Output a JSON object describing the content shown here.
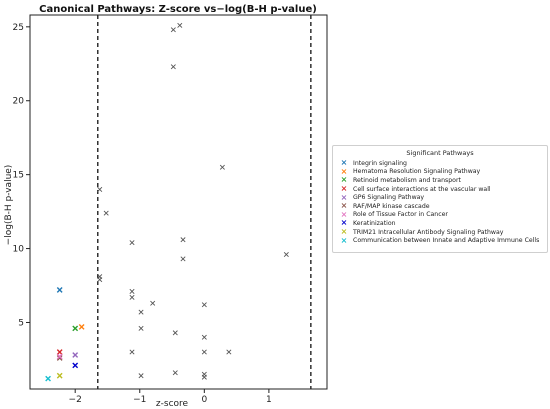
{
  "chart_data": {
    "type": "scatter",
    "title": "Canonical Pathways: Z-score vs−log(B-H p-value)",
    "xlabel": "z-score",
    "ylabel": "−log(B-H p-value)",
    "xlim": [
      -2.7,
      1.9
    ],
    "ylim": [
      0.5,
      25.8
    ],
    "xticks": [
      -2,
      -1,
      0,
      1
    ],
    "xtick_labels": [
      "−2",
      "−1",
      "0",
      "1"
    ],
    "yticks": [
      5,
      10,
      15,
      20,
      25
    ],
    "ytick_labels": [
      "5",
      "10",
      "15",
      "20",
      "25"
    ],
    "threshold_lines_x": [
      -1.65,
      1.65
    ],
    "grid": false,
    "legend_position": "right",
    "marker": "x",
    "gray_color": "#555555",
    "other_points": [
      {
        "x": -0.48,
        "y": 24.8
      },
      {
        "x": -0.38,
        "y": 25.1
      },
      {
        "x": -0.48,
        "y": 22.3
      },
      {
        "x": 0.28,
        "y": 15.5
      },
      {
        "x": -1.62,
        "y": 14.0
      },
      {
        "x": -1.52,
        "y": 12.4
      },
      {
        "x": -0.33,
        "y": 10.6
      },
      {
        "x": -1.12,
        "y": 10.4
      },
      {
        "x": 1.27,
        "y": 9.6
      },
      {
        "x": -0.33,
        "y": 9.3
      },
      {
        "x": -1.62,
        "y": 8.1
      },
      {
        "x": -1.62,
        "y": 7.9
      },
      {
        "x": -1.12,
        "y": 7.1
      },
      {
        "x": -1.12,
        "y": 6.7
      },
      {
        "x": -0.8,
        "y": 6.3
      },
      {
        "x": 0.0,
        "y": 6.2
      },
      {
        "x": -0.98,
        "y": 5.7
      },
      {
        "x": -0.98,
        "y": 4.6
      },
      {
        "x": -0.45,
        "y": 4.3
      },
      {
        "x": 0.0,
        "y": 4.0
      },
      {
        "x": -1.12,
        "y": 3.0
      },
      {
        "x": 0.0,
        "y": 3.0
      },
      {
        "x": 0.38,
        "y": 3.0
      },
      {
        "x": -0.45,
        "y": 1.6
      },
      {
        "x": -0.98,
        "y": 1.4
      },
      {
        "x": 0.0,
        "y": 1.5
      },
      {
        "x": 0.0,
        "y": 1.3
      }
    ],
    "legend_title": "Significant Pathways",
    "series": [
      {
        "name": "Integrin signaling",
        "color": "#1f77b4",
        "x": -2.24,
        "y": 7.2
      },
      {
        "name": "Hematoma Resolution Signaling Pathway",
        "color": "#ff7f0e",
        "x": -1.9,
        "y": 4.7
      },
      {
        "name": "Retinoid metabolism and transport",
        "color": "#2ca02c",
        "x": -2.0,
        "y": 4.6
      },
      {
        "name": "Cell surface interactions at the vascular wall",
        "color": "#d62728",
        "x": -2.24,
        "y": 3.0
      },
      {
        "name": "GP6 Signaling Pathway",
        "color": "#9467bd",
        "x": -2.0,
        "y": 2.8
      },
      {
        "name": "RAF/MAP kinase cascade",
        "color": "#8c564b",
        "x": -2.24,
        "y": 2.6
      },
      {
        "name": "Role of Tissue Factor in Cancer",
        "color": "#e377c2",
        "x": -2.24,
        "y": 2.7
      },
      {
        "name": "Keratinization",
        "color": "#0000cc",
        "x": -2.0,
        "y": 2.1
      },
      {
        "name": "TRIM21 Intracellular Antibody Signaling Pathway",
        "color": "#bcbd22",
        "x": -2.24,
        "y": 1.4
      },
      {
        "name": "Communication between Innate and Adaptive Immune Cells",
        "color": "#17becf",
        "x": -2.42,
        "y": 1.2
      }
    ]
  }
}
